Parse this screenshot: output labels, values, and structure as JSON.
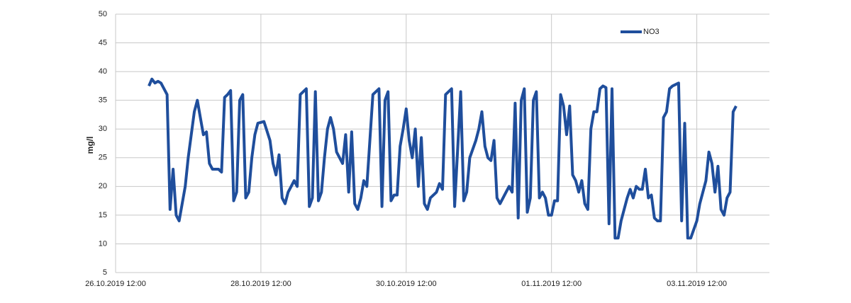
{
  "chart_data": {
    "type": "line",
    "y_label": "mg/l",
    "x": [
      "26.10.2019 23:00",
      "27.10.2019 00:00",
      "27.10.2019 01:00",
      "27.10.2019 02:00",
      "27.10.2019 03:00",
      "27.10.2019 04:00",
      "27.10.2019 05:00",
      "27.10.2019 06:00",
      "27.10.2019 07:00",
      "27.10.2019 08:00",
      "27.10.2019 09:00",
      "27.10.2019 10:00",
      "27.10.2019 11:00",
      "27.10.2019 12:00",
      "27.10.2019 13:00",
      "27.10.2019 14:00",
      "27.10.2019 15:00",
      "27.10.2019 16:00",
      "27.10.2019 17:00",
      "27.10.2019 18:00",
      "27.10.2019 19:00",
      "27.10.2019 20:00",
      "27.10.2019 21:00",
      "27.10.2019 22:00",
      "27.10.2019 23:00",
      "28.10.2019 00:00",
      "28.10.2019 01:00",
      "28.10.2019 02:00",
      "28.10.2019 03:00",
      "28.10.2019 04:00",
      "28.10.2019 05:00",
      "28.10.2019 06:00",
      "28.10.2019 07:00",
      "28.10.2019 08:00",
      "28.10.2019 09:00",
      "28.10.2019 10:00",
      "28.10.2019 11:00",
      "28.10.2019 13:00",
      "28.10.2019 15:00",
      "28.10.2019 16:00",
      "28.10.2019 17:00",
      "28.10.2019 18:00",
      "28.10.2019 19:00",
      "28.10.2019 20:00",
      "28.10.2019 21:00",
      "28.10.2019 22:00",
      "28.10.2019 23:00",
      "29.10.2019 00:00",
      "29.10.2019 01:00",
      "29.10.2019 03:00",
      "29.10.2019 04:00",
      "29.10.2019 05:00",
      "29.10.2019 06:00",
      "29.10.2019 07:00",
      "29.10.2019 08:00",
      "29.10.2019 09:00",
      "29.10.2019 10:00",
      "29.10.2019 11:00",
      "29.10.2019 12:00",
      "29.10.2019 13:00",
      "29.10.2019 15:00",
      "29.10.2019 16:00",
      "29.10.2019 17:00",
      "29.10.2019 18:00",
      "29.10.2019 19:00",
      "29.10.2019 20:00",
      "29.10.2019 21:00",
      "29.10.2019 22:00",
      "29.10.2019 23:00",
      "30.10.2019 01:00",
      "30.10.2019 03:00",
      "30.10.2019 04:00",
      "30.10.2019 05:00",
      "30.10.2019 06:00",
      "30.10.2019 07:00",
      "30.10.2019 08:00",
      "30.10.2019 09:00",
      "30.10.2019 10:00",
      "30.10.2019 11:00",
      "30.10.2019 12:00",
      "30.10.2019 13:00",
      "30.10.2019 14:00",
      "30.10.2019 15:00",
      "30.10.2019 16:00",
      "30.10.2019 17:00",
      "30.10.2019 18:00",
      "30.10.2019 19:00",
      "30.10.2019 20:00",
      "30.10.2019 22:00",
      "30.10.2019 23:00",
      "31.10.2019 00:00",
      "31.10.2019 01:00",
      "31.10.2019 03:00",
      "31.10.2019 04:00",
      "31.10.2019 06:00",
      "31.10.2019 07:00",
      "31.10.2019 08:00",
      "31.10.2019 09:00",
      "31.10.2019 11:00",
      "31.10.2019 12:00",
      "31.10.2019 13:00",
      "31.10.2019 14:00",
      "31.10.2019 15:00",
      "31.10.2019 16:00",
      "31.10.2019 17:00",
      "31.10.2019 18:00",
      "31.10.2019 19:00",
      "31.10.2019 21:00",
      "31.10.2019 22:00",
      "31.10.2019 23:00",
      "01.11.2019 00:00",
      "01.11.2019 01:00",
      "01.11.2019 02:00",
      "01.11.2019 03:00",
      "01.11.2019 04:00",
      "01.11.2019 05:00",
      "01.11.2019 06:00",
      "01.11.2019 07:00",
      "01.11.2019 08:00",
      "01.11.2019 09:00",
      "01.11.2019 10:00",
      "01.11.2019 11:00",
      "01.11.2019 12:00",
      "01.11.2019 13:00",
      "01.11.2019 14:00",
      "01.11.2019 15:00",
      "01.11.2019 16:00",
      "01.11.2019 17:00",
      "01.11.2019 18:00",
      "01.11.2019 19:00",
      "01.11.2019 20:00",
      "01.11.2019 21:00",
      "01.11.2019 22:00",
      "01.11.2019 23:00",
      "02.11.2019 00:00",
      "02.11.2019 01:00",
      "02.11.2019 02:00",
      "02.11.2019 03:00",
      "02.11.2019 04:00",
      "02.11.2019 05:00",
      "02.11.2019 06:00",
      "02.11.2019 07:00",
      "02.11.2019 08:00",
      "02.11.2019 09:00",
      "02.11.2019 10:00",
      "02.11.2019 11:00",
      "02.11.2019 12:00",
      "02.11.2019 13:00",
      "02.11.2019 14:00",
      "02.11.2019 15:00",
      "02.11.2019 16:00",
      "02.11.2019 17:00",
      "02.11.2019 18:00",
      "02.11.2019 19:00",
      "02.11.2019 20:00",
      "02.11.2019 21:00",
      "02.11.2019 22:00",
      "02.11.2019 23:00",
      "03.11.2019 00:00",
      "03.11.2019 01:00",
      "03.11.2019 02:00",
      "03.11.2019 03:00",
      "03.11.2019 04:00",
      "03.11.2019 06:00",
      "03.11.2019 07:00",
      "03.11.2019 08:00",
      "03.11.2019 09:00",
      "03.11.2019 10:00",
      "03.11.2019 12:00",
      "03.11.2019 13:00",
      "03.11.2019 15:00",
      "03.11.2019 16:00",
      "03.11.2019 17:00",
      "03.11.2019 18:00",
      "03.11.2019 19:00",
      "03.11.2019 20:00",
      "03.11.2019 21:00",
      "03.11.2019 22:00",
      "03.11.2019 23:00",
      "04.11.2019 00:00",
      "04.11.2019 01:00"
    ],
    "series": [
      {
        "name": "NO3",
        "color": "#1f4e9c",
        "values": [
          37.5,
          38.7,
          38,
          38.3,
          38,
          37,
          36,
          16,
          23,
          15,
          14,
          17,
          20,
          25,
          29,
          33,
          35,
          32,
          29,
          29.5,
          24,
          23,
          23,
          23,
          22.5,
          35.5,
          36,
          36.7,
          17.5,
          19,
          35,
          36,
          18,
          19,
          25,
          29,
          31,
          31.3,
          28,
          24,
          22,
          25.5,
          18,
          17,
          19,
          20,
          21,
          20,
          36,
          37,
          16.5,
          18,
          36.5,
          17.5,
          19,
          25,
          30,
          32,
          30,
          26,
          24,
          29,
          19,
          29.5,
          17,
          16,
          18,
          21,
          20,
          36,
          37,
          16.5,
          35,
          36.5,
          17.5,
          18.5,
          18.5,
          27,
          30,
          33.5,
          28,
          25,
          30,
          20,
          28.5,
          17,
          16,
          18,
          19,
          20.5,
          19.5,
          36,
          37,
          16.5,
          36.5,
          17.5,
          19,
          25,
          28,
          30,
          33,
          27,
          25,
          24.5,
          28,
          18,
          17,
          19,
          20,
          19,
          34.5,
          14.5,
          35,
          37,
          15.5,
          18,
          35,
          36.5,
          18,
          19,
          18,
          15,
          15,
          17.5,
          17.5,
          36,
          34,
          29,
          34,
          22,
          21,
          19,
          21,
          17,
          16,
          30,
          33,
          33,
          37,
          37.5,
          37.2,
          13.5,
          37,
          11,
          11,
          14,
          16,
          18,
          19.5,
          18,
          20,
          19.5,
          19.5,
          23,
          18,
          18.5,
          14.5,
          14,
          14,
          32,
          33,
          37,
          37.5,
          38,
          14,
          31,
          11,
          11,
          14,
          17,
          21,
          26,
          24,
          19,
          23.5,
          16,
          15,
          18,
          19,
          33,
          34
        ]
      }
    ],
    "xlim": [
      "26.10.2019 12:00",
      "04.11.2019 12:00"
    ],
    "xticks": [
      "26.10.2019 12:00",
      "28.10.2019 12:00",
      "30.10.2019 12:00",
      "01.11.2019 12:00",
      "03.11.2019 12:00"
    ],
    "ylim": [
      5,
      50
    ],
    "yticks": [
      5,
      10,
      15,
      20,
      25,
      30,
      35,
      40,
      45,
      50
    ],
    "grid": true,
    "legend": "upper right"
  }
}
